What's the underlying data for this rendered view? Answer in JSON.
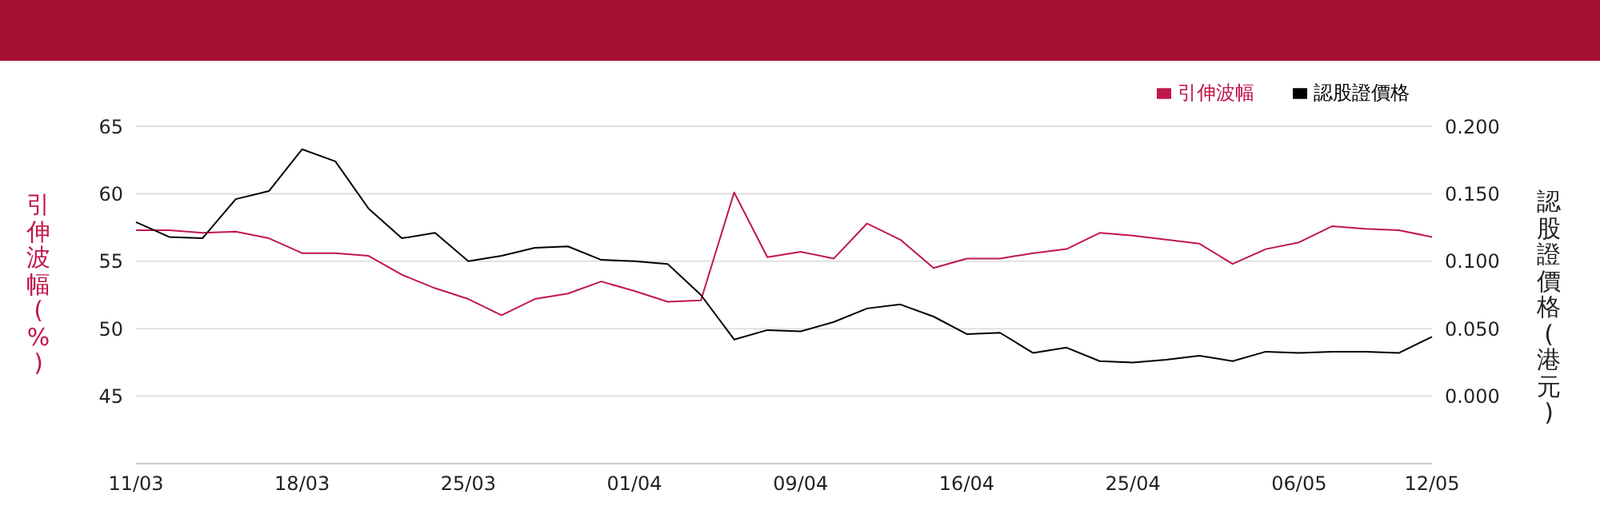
{
  "chart_data": {
    "type": "line",
    "categories": [
      "11/03",
      null,
      null,
      null,
      null,
      "18/03",
      null,
      null,
      null,
      null,
      "25/03",
      null,
      null,
      null,
      null,
      "01/04",
      null,
      null,
      null,
      null,
      "09/04",
      null,
      null,
      null,
      null,
      "16/04",
      null,
      null,
      null,
      null,
      "25/04",
      null,
      null,
      null,
      null,
      "06/05",
      null,
      null,
      null,
      "12/05"
    ],
    "series": [
      {
        "name": "引伸波幅",
        "color": "#c0174a",
        "values": [
          57.3,
          57.3,
          57.1,
          57.2,
          56.7,
          55.6,
          55.6,
          55.4,
          54.0,
          53.0,
          52.2,
          51.0,
          52.2,
          52.6,
          53.5,
          52.8,
          52.0,
          52.1,
          60.1,
          55.3,
          55.7,
          55.2,
          57.8,
          56.6,
          54.5,
          55.2,
          55.2,
          55.6,
          55.9,
          57.1,
          56.9,
          56.6,
          56.3,
          54.8,
          55.9,
          56.4,
          57.6,
          57.4,
          57.3,
          56.8
        ]
      },
      {
        "name": "認股證價格",
        "color": "#000000",
        "axis": "y2",
        "values": [
          0.129,
          0.118,
          0.117,
          0.146,
          0.152,
          0.183,
          0.174,
          0.139,
          0.117,
          0.121,
          0.1,
          0.104,
          0.11,
          0.111,
          0.101,
          0.1,
          0.098,
          0.075,
          0.042,
          0.049,
          0.048,
          0.055,
          0.065,
          0.068,
          0.059,
          0.046,
          0.047,
          0.032,
          0.036,
          0.026,
          0.025,
          0.027,
          0.03,
          0.026,
          0.033,
          0.032,
          0.033,
          0.033,
          0.032,
          0.044
        ]
      }
    ],
    "ylabel": "引伸波幅(%)",
    "y2label": "認股證價格(港元)",
    "ylim": [
      40,
      65
    ],
    "yticks": [
      45,
      50,
      55,
      60,
      65
    ],
    "y2lim": [
      -0.05,
      0.2
    ],
    "y2ticks": [
      {
        "value": 0,
        "label": "0.000"
      },
      {
        "value": 0.05,
        "label": "0.050"
      },
      {
        "value": 0.1,
        "label": "0.100"
      },
      {
        "value": 0.15,
        "label": "0.150"
      },
      {
        "value": 0.2,
        "label": "0.200"
      }
    ],
    "grid": "y",
    "legend": "top right",
    "marker": "none",
    "line_style": "solid"
  }
}
